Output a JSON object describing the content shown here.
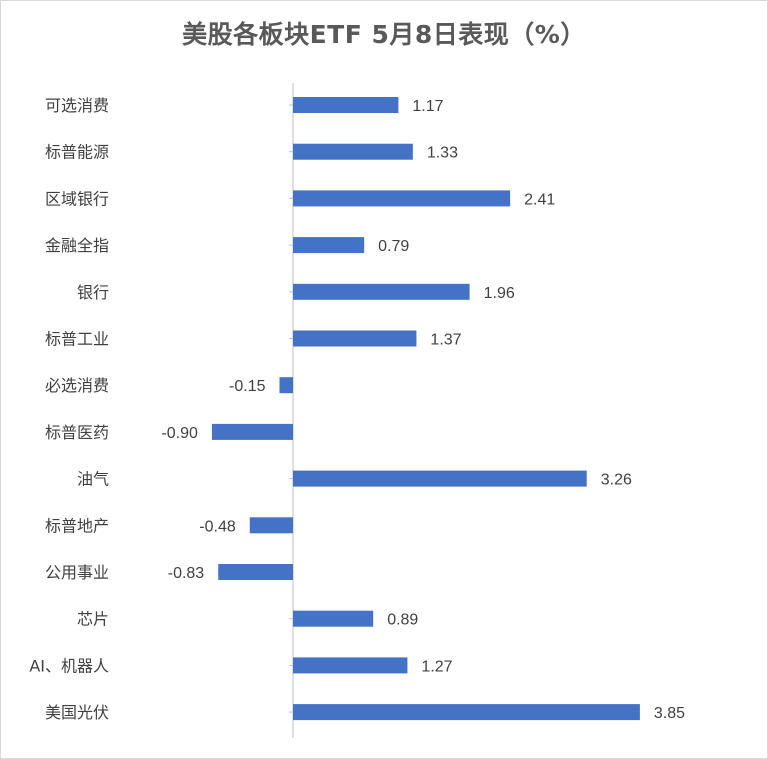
{
  "chart_data": {
    "type": "bar",
    "orientation": "horizontal",
    "title": "美股各板块ETF  5月8日表现（%）",
    "categories": [
      "可选消费",
      "标普能源",
      "区域银行",
      "金融全指",
      "银行",
      "标普工业",
      "必选消费",
      "标普医药",
      "油气",
      "标普地产",
      "公用事业",
      "芯片",
      "AI、机器人",
      "美国光伏"
    ],
    "values": [
      1.17,
      1.33,
      2.41,
      0.79,
      1.96,
      1.37,
      -0.15,
      -0.9,
      3.26,
      -0.48,
      -0.83,
      0.89,
      1.27,
      3.85
    ],
    "value_labels": [
      "1.17",
      "1.33",
      "2.41",
      "0.79",
      "1.96",
      "1.37",
      "-0.15",
      "-0.90",
      "3.26",
      "-0.48",
      "-0.83",
      "0.89",
      "1.27",
      "3.85"
    ],
    "xlim": [
      -3.26,
      3.85
    ],
    "bar_color": "#4472c4",
    "axis_color": "#bfbfbf",
    "grid": false,
    "legend": "none"
  }
}
